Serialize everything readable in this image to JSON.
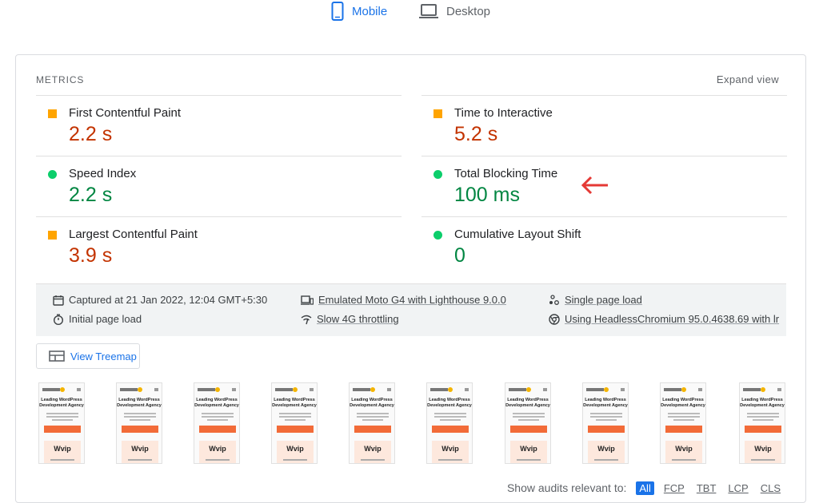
{
  "device_tabs": [
    {
      "label": "Mobile",
      "active": true,
      "icon": "smartphone-icon"
    },
    {
      "label": "Desktop",
      "active": false,
      "icon": "laptop-icon"
    }
  ],
  "metrics": {
    "header": "METRICS",
    "expand_label": "Expand view",
    "items": [
      {
        "label": "First Contentful Paint",
        "value": "2.2 s",
        "rating": "average"
      },
      {
        "label": "Time to Interactive",
        "value": "5.2 s",
        "rating": "average"
      },
      {
        "label": "Speed Index",
        "value": "2.2 s",
        "rating": "pass"
      },
      {
        "label": "Total Blocking Time",
        "value": "100 ms",
        "rating": "pass"
      },
      {
        "label": "Largest Contentful Paint",
        "value": "3.9 s",
        "rating": "average"
      },
      {
        "label": "Cumulative Layout Shift",
        "value": "0",
        "rating": "pass"
      }
    ]
  },
  "runtime": {
    "captured": "Captured at 21 Jan 2022, 12:04 GMT+5:30",
    "initial_load": "Initial page load",
    "emulated": "Emulated Moto G4 with Lighthouse 9.0.0",
    "throttling": "Slow 4G throttling",
    "single_load": "Single page load",
    "browser": "Using HeadlessChromium 95.0.4638.69 with lr"
  },
  "treemap": {
    "label": "View Treemap"
  },
  "filmstrip": {
    "frame_count": 10,
    "heading": "Leading WordPress Development Agency",
    "badge": "Wvip"
  },
  "audits_filter": {
    "label": "Show audits relevant to:",
    "options": [
      "All",
      "FCP",
      "TBT",
      "LCP",
      "CLS"
    ],
    "selected": "All"
  },
  "colors": {
    "accent": "#1a73e8",
    "average": "#ffa400",
    "average_text": "#c33300",
    "pass": "#0cce6b",
    "pass_text": "#018642",
    "annotation": "#e53935"
  }
}
